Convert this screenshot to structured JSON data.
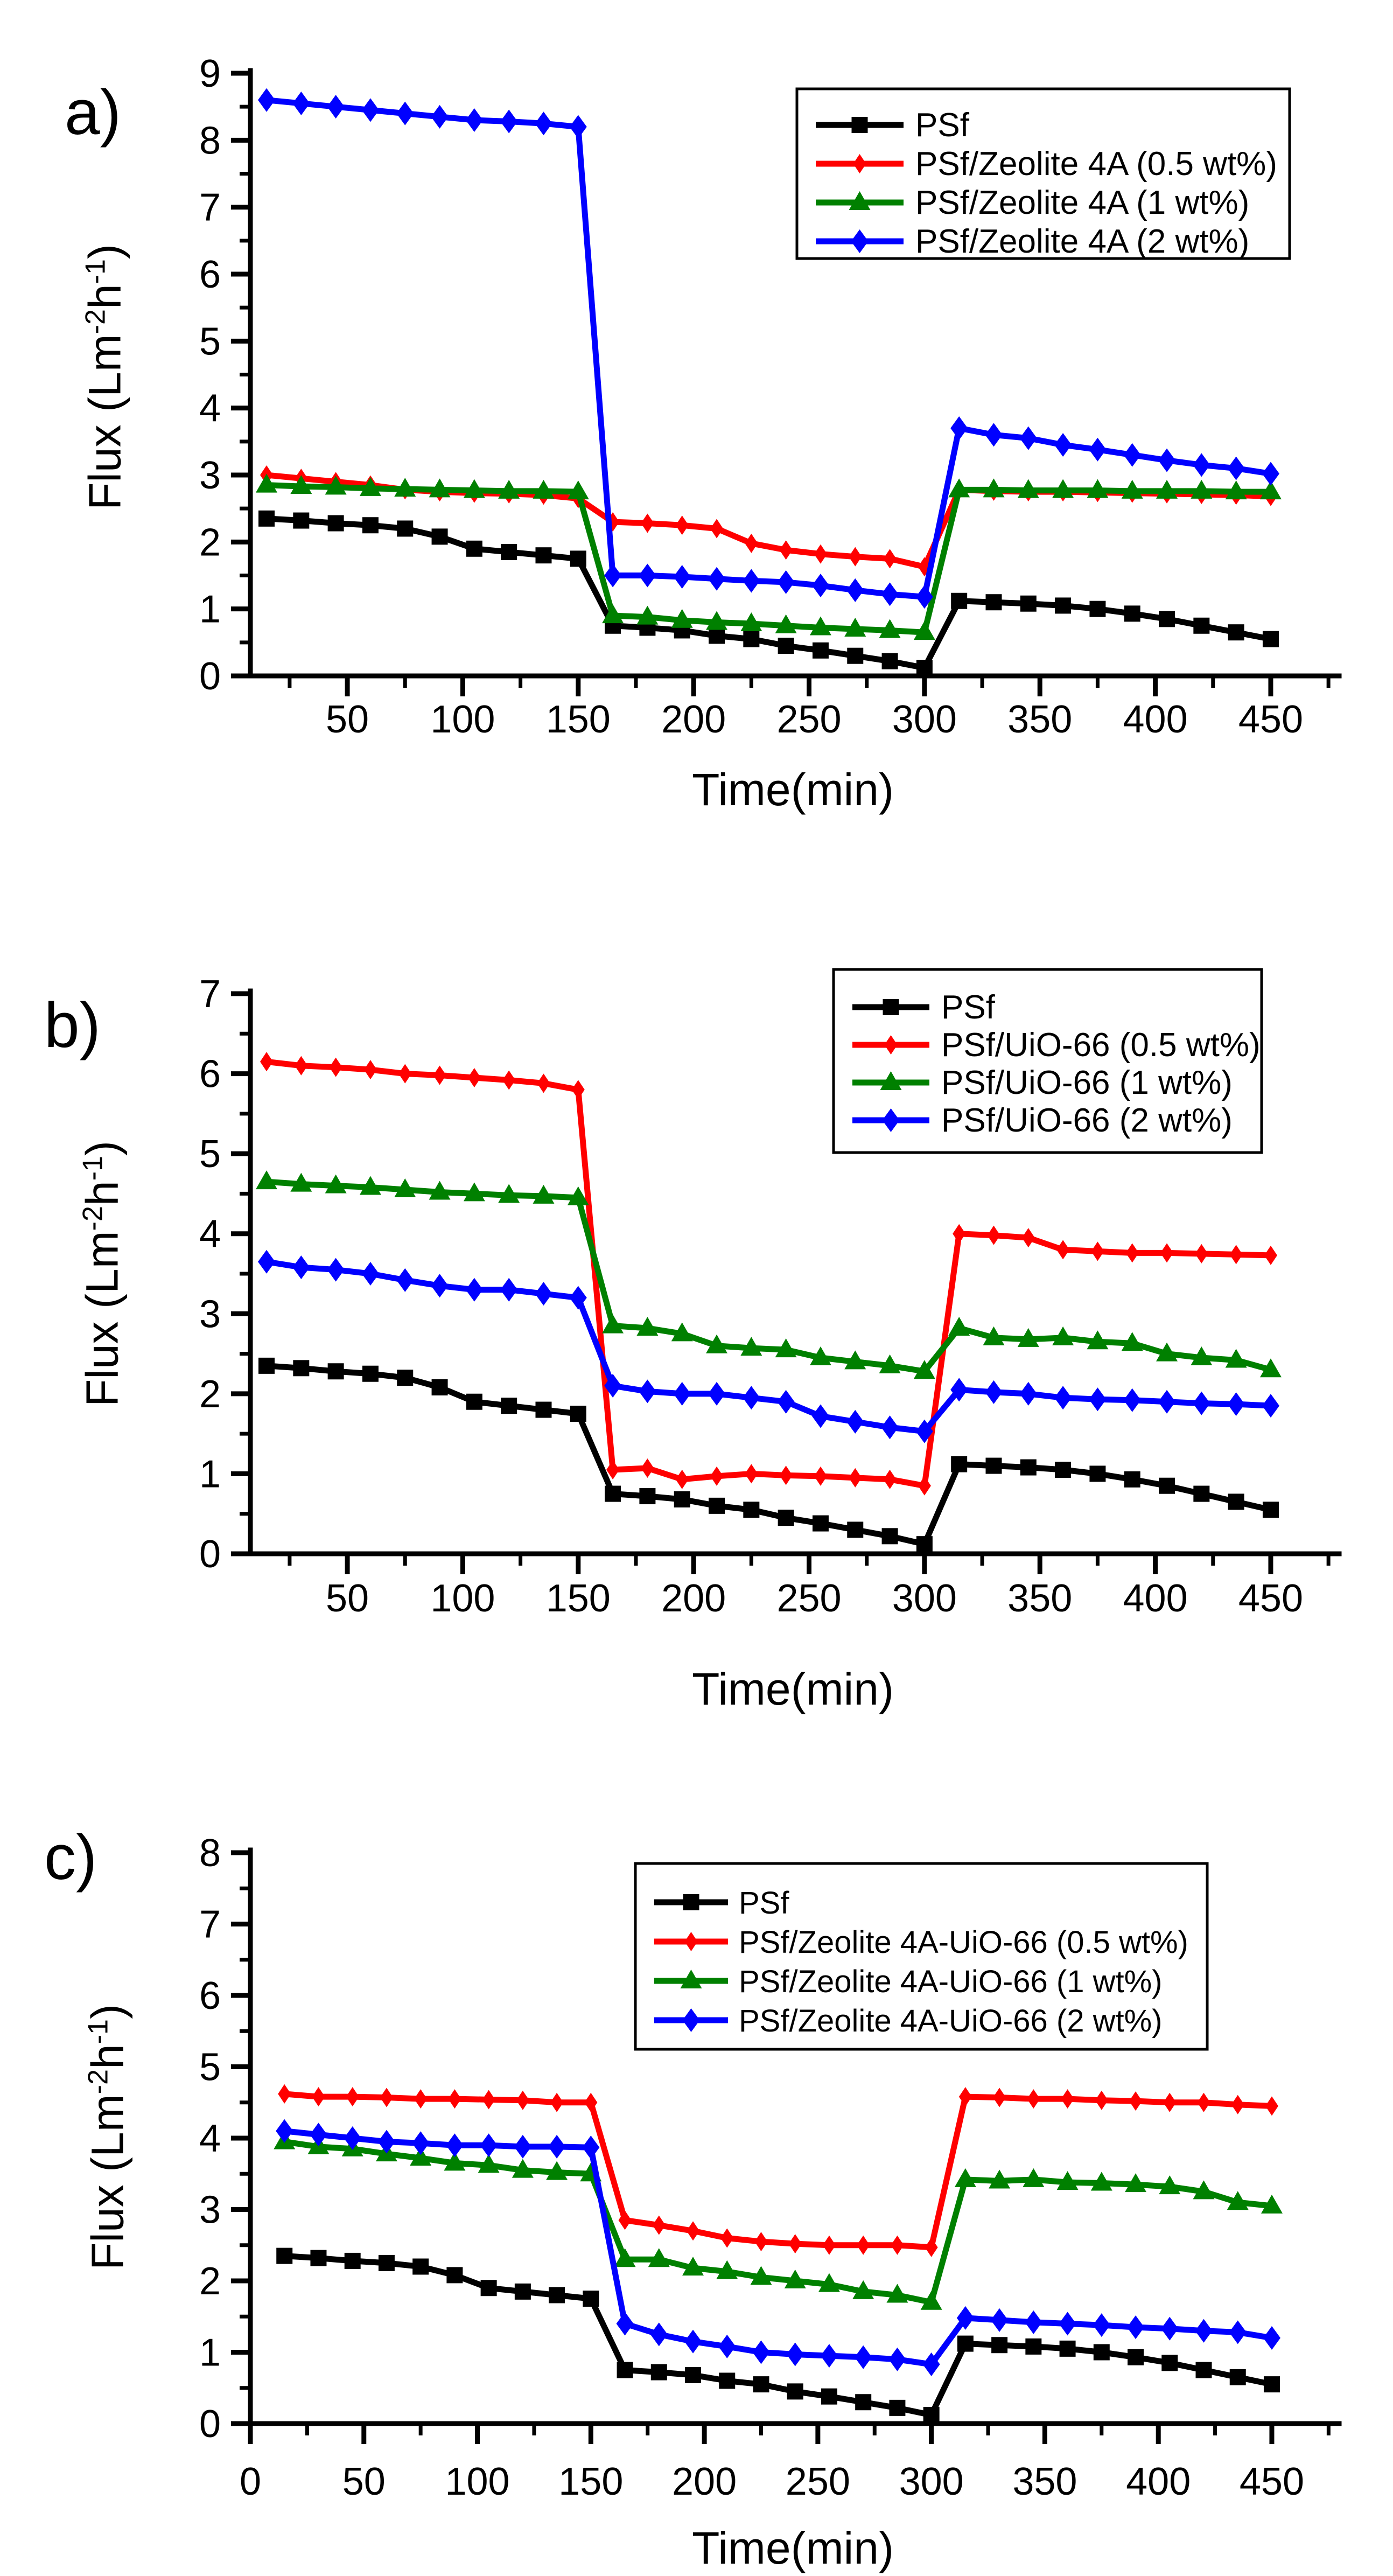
{
  "figure_background": "#ffffff",
  "series_colors": {
    "psf": "#000000",
    "half_wt": "#ff0000",
    "one_wt": "#008000",
    "two_wt": "#0000ff"
  },
  "chart_data": [
    {
      "panel_label": "a)",
      "type": "line",
      "title": "",
      "xlabel": "Time(min)",
      "ylabel": "Flux (Lm-2h-1)",
      "ylabel_parts": [
        {
          "t": "Flux (Lm"
        },
        {
          "t": "-2",
          "sup": true
        },
        {
          "t": "h"
        },
        {
          "t": "-1",
          "sup": true
        },
        {
          "t": ")"
        }
      ],
      "xlim": [
        8,
        478
      ],
      "ylim": [
        0,
        9
      ],
      "xticks": [
        50,
        100,
        150,
        200,
        250,
        300,
        350,
        400,
        450
      ],
      "xminor_step": 25,
      "ytick_step": 1,
      "yminor_step": 0.5,
      "legend_position": "top-right",
      "grid": false,
      "x": [
        15,
        30,
        45,
        60,
        75,
        90,
        105,
        120,
        135,
        150,
        165,
        180,
        195,
        210,
        225,
        240,
        255,
        270,
        285,
        300,
        315,
        330,
        345,
        360,
        375,
        390,
        405,
        420,
        435,
        450
      ],
      "series": [
        {
          "name": "PSf",
          "color": "#000000",
          "marker": "square",
          "values": [
            2.35,
            2.32,
            2.28,
            2.25,
            2.2,
            2.08,
            1.9,
            1.85,
            1.8,
            1.75,
            0.75,
            0.72,
            0.68,
            0.6,
            0.55,
            0.45,
            0.38,
            0.3,
            0.22,
            0.12,
            1.12,
            1.1,
            1.08,
            1.05,
            1.0,
            0.93,
            0.85,
            0.75,
            0.65,
            0.55
          ]
        },
        {
          "name": "PSf/Zeolite 4A (0.5 wt%)",
          "color": "#ff0000",
          "marker": "sdiamond",
          "values": [
            3.0,
            2.95,
            2.9,
            2.85,
            2.78,
            2.75,
            2.73,
            2.72,
            2.7,
            2.65,
            2.3,
            2.28,
            2.25,
            2.2,
            1.98,
            1.88,
            1.82,
            1.78,
            1.75,
            1.63,
            2.78,
            2.76,
            2.75,
            2.75,
            2.74,
            2.73,
            2.72,
            2.71,
            2.7,
            2.68
          ]
        },
        {
          "name": "PSf/Zeolite 4A (1 wt%)",
          "color": "#008000",
          "marker": "triangle",
          "values": [
            2.85,
            2.83,
            2.82,
            2.8,
            2.79,
            2.78,
            2.77,
            2.76,
            2.76,
            2.75,
            0.9,
            0.88,
            0.83,
            0.8,
            0.78,
            0.75,
            0.72,
            0.7,
            0.68,
            0.65,
            2.78,
            2.78,
            2.77,
            2.77,
            2.77,
            2.76,
            2.76,
            2.76,
            2.75,
            2.75
          ]
        },
        {
          "name": "PSf/Zeolite 4A (2 wt%)",
          "color": "#0000ff",
          "marker": "diamond",
          "values": [
            8.6,
            8.55,
            8.5,
            8.45,
            8.4,
            8.35,
            8.3,
            8.28,
            8.25,
            8.2,
            1.5,
            1.5,
            1.48,
            1.45,
            1.42,
            1.4,
            1.35,
            1.28,
            1.22,
            1.18,
            3.7,
            3.6,
            3.55,
            3.45,
            3.38,
            3.3,
            3.22,
            3.15,
            3.1,
            3.02
          ]
        }
      ]
    },
    {
      "panel_label": "b)",
      "type": "line",
      "title": "",
      "xlabel": "Time(min)",
      "ylabel": "Flux (Lm-2h-1)",
      "ylabel_parts": [
        {
          "t": "Flux (Lm"
        },
        {
          "t": "-2",
          "sup": true
        },
        {
          "t": "h"
        },
        {
          "t": "-1",
          "sup": true
        },
        {
          "t": ")"
        }
      ],
      "xlim": [
        8,
        478
      ],
      "ylim": [
        0,
        7
      ],
      "xticks": [
        50,
        100,
        150,
        200,
        250,
        300,
        350,
        400,
        450
      ],
      "xminor_step": 25,
      "ytick_step": 1,
      "yminor_step": 0.5,
      "legend_position": "top-right",
      "grid": false,
      "x": [
        15,
        30,
        45,
        60,
        75,
        90,
        105,
        120,
        135,
        150,
        165,
        180,
        195,
        210,
        225,
        240,
        255,
        270,
        285,
        300,
        315,
        330,
        345,
        360,
        375,
        390,
        405,
        420,
        435,
        450
      ],
      "series": [
        {
          "name": "PSf",
          "color": "#000000",
          "marker": "square",
          "values": [
            2.35,
            2.32,
            2.28,
            2.25,
            2.2,
            2.08,
            1.9,
            1.85,
            1.8,
            1.75,
            0.75,
            0.72,
            0.68,
            0.6,
            0.55,
            0.45,
            0.38,
            0.3,
            0.22,
            0.12,
            1.12,
            1.1,
            1.08,
            1.05,
            1.0,
            0.93,
            0.85,
            0.75,
            0.65,
            0.55
          ]
        },
        {
          "name": "PSf/UiO-66 (0.5 wt%)",
          "color": "#ff0000",
          "marker": "sdiamond",
          "values": [
            6.15,
            6.1,
            6.08,
            6.05,
            6.0,
            5.98,
            5.95,
            5.92,
            5.88,
            5.8,
            1.05,
            1.07,
            0.93,
            0.97,
            1.0,
            0.98,
            0.97,
            0.95,
            0.93,
            0.85,
            4.0,
            3.98,
            3.95,
            3.8,
            3.78,
            3.76,
            3.76,
            3.75,
            3.74,
            3.73
          ]
        },
        {
          "name": "PSf/UiO-66 (1 wt%)",
          "color": "#008000",
          "marker": "triangle",
          "values": [
            4.65,
            4.62,
            4.6,
            4.58,
            4.55,
            4.52,
            4.5,
            4.48,
            4.47,
            4.45,
            2.85,
            2.82,
            2.75,
            2.6,
            2.57,
            2.55,
            2.45,
            2.4,
            2.35,
            2.28,
            2.82,
            2.7,
            2.68,
            2.7,
            2.65,
            2.63,
            2.5,
            2.45,
            2.42,
            2.3
          ]
        },
        {
          "name": "PSf/UiO-66 (2 wt%)",
          "color": "#0000ff",
          "marker": "diamond",
          "values": [
            3.65,
            3.58,
            3.55,
            3.5,
            3.42,
            3.35,
            3.3,
            3.3,
            3.25,
            3.2,
            2.1,
            2.03,
            2.0,
            2.0,
            1.95,
            1.9,
            1.72,
            1.65,
            1.58,
            1.53,
            2.05,
            2.02,
            2.0,
            1.95,
            1.93,
            1.92,
            1.9,
            1.88,
            1.87,
            1.85
          ]
        }
      ]
    },
    {
      "panel_label": "c)",
      "type": "line",
      "title": "",
      "xlabel": "Time(min)",
      "ylabel": "Flux (Lm-2h-1)",
      "ylabel_parts": [
        {
          "t": "Flux (Lm"
        },
        {
          "t": "-2",
          "sup": true
        },
        {
          "t": "h"
        },
        {
          "t": "-1",
          "sup": true
        },
        {
          "t": ")"
        }
      ],
      "xlim": [
        0,
        478
      ],
      "ylim": [
        0,
        8
      ],
      "xticks": [
        0,
        50,
        100,
        150,
        200,
        250,
        300,
        350,
        400,
        450
      ],
      "xminor_step": 25,
      "ytick_step": 1,
      "yminor_step": 0.5,
      "legend_position": "top-right",
      "grid": false,
      "x": [
        15,
        30,
        45,
        60,
        75,
        90,
        105,
        120,
        135,
        150,
        165,
        180,
        195,
        210,
        225,
        240,
        255,
        270,
        285,
        300,
        315,
        330,
        345,
        360,
        375,
        390,
        405,
        420,
        435,
        450
      ],
      "series": [
        {
          "name": "PSf",
          "color": "#000000",
          "marker": "square",
          "values": [
            2.35,
            2.32,
            2.28,
            2.25,
            2.2,
            2.08,
            1.9,
            1.85,
            1.8,
            1.75,
            0.75,
            0.72,
            0.68,
            0.6,
            0.55,
            0.45,
            0.38,
            0.3,
            0.22,
            0.12,
            1.12,
            1.1,
            1.08,
            1.05,
            1.0,
            0.93,
            0.85,
            0.75,
            0.65,
            0.55
          ]
        },
        {
          "name": "PSf/Zeolite 4A-UiO-66 (0.5 wt%)",
          "color": "#ff0000",
          "marker": "sdiamond",
          "values": [
            4.62,
            4.58,
            4.58,
            4.57,
            4.55,
            4.55,
            4.54,
            4.53,
            4.5,
            4.5,
            2.85,
            2.78,
            2.7,
            2.6,
            2.55,
            2.52,
            2.5,
            2.5,
            2.5,
            2.47,
            4.58,
            4.57,
            4.55,
            4.55,
            4.53,
            4.52,
            4.5,
            4.5,
            4.47,
            4.45
          ]
        },
        {
          "name": "PSf/Zeolite 4A-UiO-66 (1 wt%)",
          "color": "#008000",
          "marker": "triangle",
          "values": [
            3.95,
            3.88,
            3.85,
            3.78,
            3.72,
            3.65,
            3.62,
            3.55,
            3.52,
            3.5,
            2.3,
            2.3,
            2.18,
            2.13,
            2.05,
            2.0,
            1.95,
            1.85,
            1.8,
            1.7,
            3.42,
            3.4,
            3.42,
            3.38,
            3.37,
            3.35,
            3.32,
            3.25,
            3.1,
            3.05
          ]
        },
        {
          "name": "PSf/Zeolite 4A-UiO-66 (2 wt%)",
          "color": "#0000ff",
          "marker": "diamond",
          "values": [
            4.1,
            4.05,
            4.0,
            3.95,
            3.93,
            3.9,
            3.9,
            3.88,
            3.88,
            3.87,
            1.4,
            1.25,
            1.15,
            1.08,
            1.0,
            0.97,
            0.95,
            0.93,
            0.9,
            0.83,
            1.48,
            1.45,
            1.42,
            1.4,
            1.38,
            1.35,
            1.33,
            1.3,
            1.28,
            1.2
          ]
        }
      ]
    }
  ]
}
